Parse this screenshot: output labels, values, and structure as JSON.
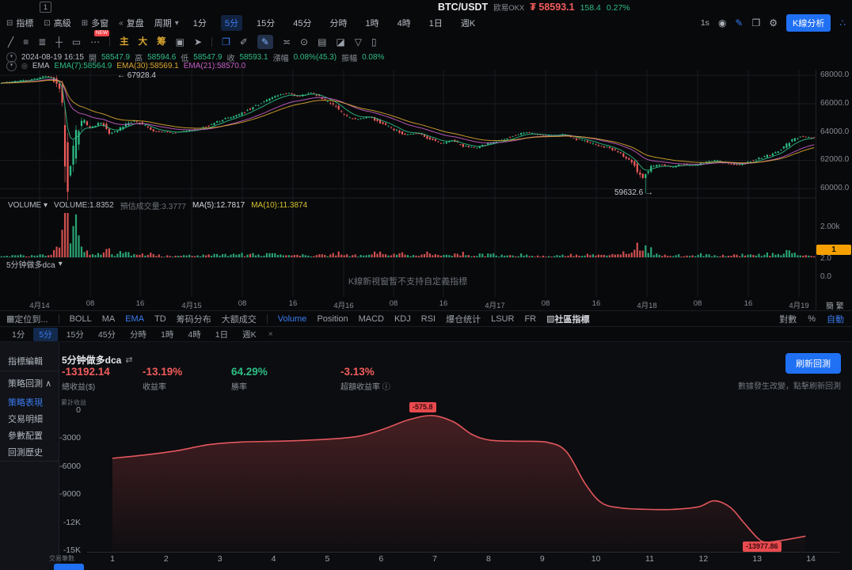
{
  "window": {
    "tab_badge": "1"
  },
  "header": {
    "symbol": "BTC/USDT",
    "exchange": "欧易OKX",
    "currency": "₮",
    "price": "58593.1",
    "change": "158.4",
    "change_pct": "0.27%"
  },
  "main_toolbar": {
    "nav": [
      {
        "icon": "indicator-icon",
        "glyph": "⊟",
        "label": "指標"
      },
      {
        "icon": "advanced-icon",
        "glyph": "⊡",
        "label": "高級"
      },
      {
        "icon": "multi-window-icon",
        "glyph": "⊞",
        "label": "多窗"
      },
      {
        "icon": "replay-icon",
        "glyph": "«",
        "label": "复盘"
      }
    ],
    "period_label": "周期",
    "period_caret": "▾",
    "timeframes": [
      "1分",
      "5分",
      "15分",
      "45分",
      "分時",
      "1時",
      "4時",
      "1日",
      "週K"
    ],
    "active_timeframe": "5分",
    "right": {
      "resolution": "1s",
      "icons": [
        {
          "name": "camera-icon",
          "glyph": "◉",
          "accent": false
        },
        {
          "name": "draw-icon",
          "glyph": "✎",
          "accent": true
        },
        {
          "name": "popout-icon",
          "glyph": "❐",
          "accent": false
        },
        {
          "name": "settings-gear-icon",
          "glyph": "⚙",
          "accent": false
        }
      ],
      "kline_button": "K線分析",
      "share_icon_glyph": "∴"
    }
  },
  "draw_toolbar": {
    "tools": [
      {
        "name": "trend-line-icon",
        "glyph": "╱"
      },
      {
        "name": "parallel-lines-icon",
        "glyph": "≡"
      },
      {
        "name": "list-lines-icon",
        "glyph": "≣"
      },
      {
        "name": "horizontal-cross-icon",
        "glyph": "┼"
      },
      {
        "name": "rectangle-icon",
        "glyph": "▭"
      },
      {
        "name": "more-tools-icon",
        "glyph": "⋯",
        "badge": "NEW"
      },
      {
        "divider": true
      },
      {
        "name": "main-chart-tool",
        "glyph": "主",
        "accent": "yellow"
      },
      {
        "name": "big-text-tool",
        "glyph": "大",
        "accent": "yellow"
      },
      {
        "name": "chips-tool",
        "glyph": "筹",
        "accent": "yellow"
      },
      {
        "name": "edit-box-icon",
        "glyph": "▣"
      },
      {
        "name": "cursor-icon",
        "glyph": "➤"
      },
      {
        "divider": true
      },
      {
        "name": "copy-icon",
        "glyph": "❐",
        "accent": "blue"
      },
      {
        "name": "brush-icon",
        "glyph": "✐"
      },
      {
        "name": "pen-icon",
        "glyph": "✎",
        "selected": true
      },
      {
        "name": "measure-icon",
        "glyph": "≍"
      },
      {
        "name": "lock-icon",
        "glyph": "⊙"
      },
      {
        "name": "note-icon",
        "glyph": "▤"
      },
      {
        "name": "eraser-icon",
        "glyph": "◪"
      },
      {
        "name": "filter-icon",
        "glyph": "▽"
      },
      {
        "name": "trash-icon",
        "glyph": "▯"
      }
    ]
  },
  "ohlc_row": {
    "datetime": "2024-08-19 16:15",
    "open_label": "開",
    "open": "58547.9",
    "high_label": "高",
    "high": "58594.6",
    "low_label": "低",
    "low": "58547.9",
    "close_label": "收",
    "close": "58593.1",
    "change_label": "漲幅",
    "change": "0.08%(45.3)",
    "amplitude_label": "振幅",
    "amplitude": "0.08%"
  },
  "ema_row": {
    "name": "EMA",
    "ema7": "EMA(7):58564.9",
    "ema30": "EMA(30):58569.1",
    "ema21": "EMA(21):58570.0"
  },
  "price_pane": {
    "axis": [
      "68000.0",
      "66000.0",
      "64000.0",
      "62000.0",
      "60000.0"
    ],
    "high_marker": "← 67928.4",
    "low_marker": "59632.6 →"
  },
  "volume_pane": {
    "title": "VOLUME",
    "caret": "▾",
    "value": "VOLUME:1.8352",
    "estimate": "預估成交量:3.3777",
    "ma5": "MA(5):12.7817",
    "ma10": "MA(10):11.3874",
    "axis_label": "2.00k"
  },
  "custom_pane": {
    "label": "5分钟做多dca",
    "caret": "▾",
    "value_badge": "1",
    "tick_top": "2.0",
    "tick_bottom": "0.0",
    "message": "K線新視窗暫不支持自定義指標"
  },
  "time_axis": {
    "labels": [
      "4月14",
      "08",
      "16",
      "4月15",
      "08",
      "16",
      "4月16",
      "08",
      "16",
      "4月17",
      "08",
      "16",
      "4月18",
      "08",
      "16",
      "4月19"
    ],
    "lang_toggle": "簡 繁"
  },
  "indicator_bar": {
    "locate_label": "定位到...",
    "main_group": [
      "BOLL",
      "MA",
      "EMA",
      "TD",
      "筹码分布",
      "大额成交"
    ],
    "main_active": "EMA",
    "sub_group": [
      "Volume",
      "Position",
      "MACD",
      "KDJ",
      "RSI",
      "爆仓统计",
      "LSUR",
      "FR"
    ],
    "sub_active": "Volume",
    "community_label": "社區指標",
    "log_label": "對數",
    "percent_label": "%",
    "auto_label": "自動"
  },
  "tf_row": {
    "items": [
      "1分",
      "5分",
      "15分",
      "45分",
      "分時",
      "1時",
      "4時",
      "1日",
      "週K"
    ],
    "active": "5分",
    "close_glyph": "×"
  },
  "sidebar": {
    "editor_label": "指標編輯",
    "group_label": "策略回測",
    "collapse_glyph": "∧",
    "items": [
      "策略表現",
      "交易明細",
      "參數配置",
      "回測歷史"
    ],
    "active_item": "策略表現"
  },
  "backtest": {
    "title": "5分钟做多dca",
    "swap_glyph": "⇄",
    "stats": [
      {
        "value": "-13192.14",
        "label": "總收益($)",
        "tone": "red"
      },
      {
        "value": "-13.19%",
        "label": "收益率",
        "tone": "red"
      },
      {
        "value": "64.29%",
        "label": "勝率",
        "tone": "green"
      },
      {
        "value": "-3.13%",
        "label": "超額收益率",
        "tone": "red"
      }
    ],
    "info_glyph": "ⓘ",
    "refresh_button": "刷新回測",
    "note": "數據發生改變，點擊刷新回測",
    "y_axis_title": "累計收益",
    "x_axis_title": "交易筆數",
    "y_ticks": [
      "0",
      "-3000",
      "-6000",
      "-9000",
      "-12K",
      "-15K"
    ],
    "x_ticks": [
      "1",
      "2",
      "3",
      "4",
      "5",
      "6",
      "7",
      "8",
      "9",
      "10",
      "11",
      "12",
      "13",
      "14"
    ],
    "peak_badge": "-575.8",
    "trough_badge": "-13977.86"
  },
  "colors": {
    "accent_blue": "#3a7bf0",
    "button_blue": "#2070f3",
    "up_green": "#2ebd85",
    "down_red": "#f25c5c",
    "ma_yellow": "#d9a62e",
    "ema_magenta": "#c75fc7",
    "value_badge_orange": "#f5a000",
    "equity_red": "#e2575d"
  },
  "chart_data": [
    {
      "type": "candlestick",
      "symbol": "BTC/USDT",
      "interval": "5分",
      "y_axis": [
        68000,
        66000,
        64000,
        62000,
        60000
      ],
      "high_annotation": 67928.4,
      "low_annotation": 59632.6,
      "x_labels": [
        "4月14",
        "08",
        "16",
        "4月15",
        "08",
        "16",
        "4月16",
        "08",
        "16",
        "4月17",
        "08",
        "16",
        "4月18",
        "08",
        "16",
        "4月19"
      ],
      "price_path": [
        [
          0,
          67450
        ],
        [
          30,
          67620
        ],
        [
          48,
          67780
        ],
        [
          60,
          67928
        ],
        [
          72,
          67600
        ],
        [
          80,
          66200
        ],
        [
          84,
          62800
        ],
        [
          88,
          60450
        ],
        [
          93,
          62300
        ],
        [
          100,
          64000
        ],
        [
          107,
          64900
        ],
        [
          114,
          64250
        ],
        [
          122,
          64500
        ],
        [
          130,
          64650
        ],
        [
          140,
          63900
        ],
        [
          150,
          64100
        ],
        [
          160,
          64450
        ],
        [
          170,
          64800
        ],
        [
          182,
          64500
        ],
        [
          194,
          64050
        ],
        [
          206,
          64000
        ],
        [
          220,
          63900
        ],
        [
          235,
          64050
        ],
        [
          250,
          64200
        ],
        [
          265,
          64450
        ],
        [
          282,
          64850
        ],
        [
          300,
          65150
        ],
        [
          318,
          65650
        ],
        [
          336,
          66200
        ],
        [
          352,
          66550
        ],
        [
          366,
          66750
        ],
        [
          380,
          66500
        ],
        [
          394,
          66800
        ],
        [
          408,
          66400
        ],
        [
          422,
          65900
        ],
        [
          438,
          65100
        ],
        [
          452,
          64850
        ],
        [
          468,
          65050
        ],
        [
          484,
          64600
        ],
        [
          500,
          64150
        ],
        [
          514,
          63800
        ],
        [
          528,
          63900
        ],
        [
          542,
          63550
        ],
        [
          558,
          63150
        ],
        [
          572,
          63400
        ],
        [
          586,
          63000
        ],
        [
          602,
          62850
        ],
        [
          618,
          63150
        ],
        [
          634,
          63400
        ],
        [
          650,
          63750
        ],
        [
          666,
          63950
        ],
        [
          682,
          63800
        ],
        [
          698,
          63700
        ],
        [
          712,
          63850
        ],
        [
          726,
          63550
        ],
        [
          742,
          63300
        ],
        [
          758,
          63000
        ],
        [
          772,
          62850
        ],
        [
          786,
          62450
        ],
        [
          800,
          61900
        ],
        [
          808,
          61100
        ],
        [
          814,
          60650
        ],
        [
          822,
          61450
        ],
        [
          836,
          61700
        ],
        [
          850,
          61500
        ],
        [
          864,
          61700
        ],
        [
          878,
          61600
        ],
        [
          892,
          61850
        ],
        [
          906,
          62000
        ],
        [
          920,
          61750
        ],
        [
          934,
          61650
        ],
        [
          948,
          61900
        ],
        [
          962,
          62150
        ],
        [
          976,
          62400
        ],
        [
          988,
          62800
        ],
        [
          1000,
          63300
        ],
        [
          1012,
          63700
        ],
        [
          1025,
          63600
        ]
      ]
    },
    {
      "type": "bar",
      "name": "VOLUME",
      "current": 1.8352,
      "estimate": 3.3777,
      "ma5": 12.7817,
      "ma10": 11.3874,
      "axis_max": "2.00k"
    },
    {
      "type": "area",
      "name": "累計收益",
      "ylim": [
        -15000,
        0
      ],
      "x_ticks": [
        1,
        2,
        3,
        4,
        5,
        6,
        7,
        8,
        9,
        10,
        11,
        12,
        13,
        14
      ],
      "points": [
        [
          1,
          -5100
        ],
        [
          1.6,
          -4750
        ],
        [
          2.2,
          -4300
        ],
        [
          2.8,
          -3650
        ],
        [
          3.4,
          -3380
        ],
        [
          4.2,
          -3280
        ],
        [
          5,
          -3080
        ],
        [
          5.6,
          -2750
        ],
        [
          6.1,
          -1900
        ],
        [
          6.5,
          -1050
        ],
        [
          6.95,
          -575.8
        ],
        [
          7.35,
          -1250
        ],
        [
          7.7,
          -2600
        ],
        [
          8.05,
          -3200
        ],
        [
          8.6,
          -3300
        ],
        [
          9.1,
          -3420
        ],
        [
          9.45,
          -4400
        ],
        [
          9.8,
          -7800
        ],
        [
          10.1,
          -9800
        ],
        [
          10.45,
          -10350
        ],
        [
          10.9,
          -10500
        ],
        [
          11.4,
          -10520
        ],
        [
          11.9,
          -10250
        ],
        [
          12.2,
          -9600
        ],
        [
          12.5,
          -10300
        ],
        [
          12.75,
          -11900
        ],
        [
          13,
          -13500
        ],
        [
          13.15,
          -13977.86
        ],
        [
          13.45,
          -13800
        ],
        [
          13.9,
          -13350
        ]
      ],
      "peak": {
        "x": 6.95,
        "value": -575.8
      },
      "trough": {
        "x": 13.15,
        "value": -13977.86
      }
    }
  ]
}
